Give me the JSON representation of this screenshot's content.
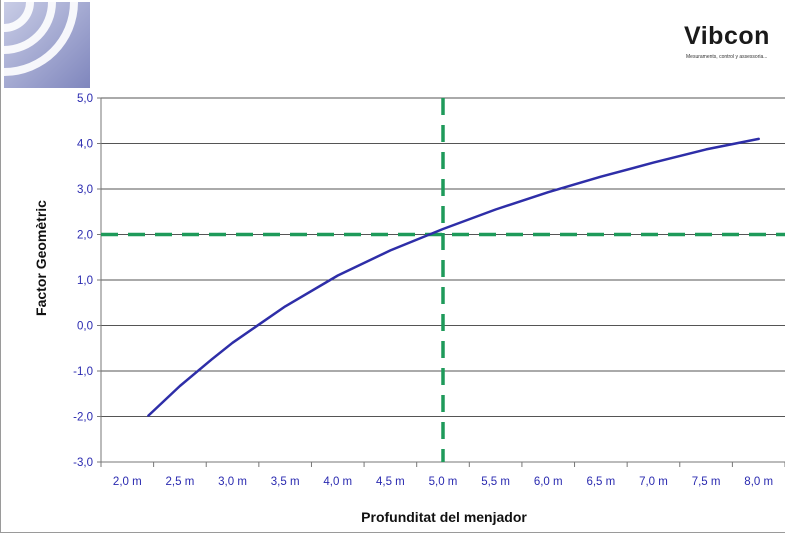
{
  "brand": {
    "name": "Vibcon",
    "tagline": "Mesuraments, control y assessoria..."
  },
  "colors": {
    "curve": "#2e2ea8",
    "reference_lines": "#1e9a5a",
    "grid": "#555555",
    "tick_labels": "#2a2ab0"
  },
  "chart_data": {
    "type": "line",
    "xlabel": "Profunditat del menjador",
    "ylabel": "Factor Geomètric",
    "x_tick_labels": [
      "2,0 m",
      "2,5 m",
      "3,0 m",
      "3,5 m",
      "4,0 m",
      "4,5 m",
      "5,0 m",
      "5,5 m",
      "6,0 m",
      "6,5 m",
      "7,0 m",
      "7,5 m",
      "8,0 m"
    ],
    "x_ticks": [
      2.0,
      2.5,
      3.0,
      3.5,
      4.0,
      4.5,
      5.0,
      5.5,
      6.0,
      6.5,
      7.0,
      7.5,
      8.0
    ],
    "y_tick_labels": [
      "-3,0",
      "-2,0",
      "-1,0",
      "0,0",
      "1,0",
      "2,0",
      "3,0",
      "4,0",
      "5,0"
    ],
    "y_ticks": [
      -3,
      -2,
      -1,
      0,
      1,
      2,
      3,
      4,
      5
    ],
    "xlim": [
      1.75,
      8.25
    ],
    "ylim": [
      -3,
      5
    ],
    "grid": "horizontal",
    "series": [
      {
        "x": [
          2.2,
          2.5,
          2.8,
          3.0,
          3.5,
          4.0,
          4.5,
          5.0,
          5.5,
          6.0,
          6.5,
          7.0,
          7.5,
          8.0
        ],
        "y": [
          -1.98,
          -1.33,
          -0.75,
          -0.38,
          0.42,
          1.1,
          1.65,
          2.12,
          2.55,
          2.93,
          3.27,
          3.58,
          3.87,
          4.1
        ]
      }
    ],
    "reference_lines": {
      "x": 5.0,
      "y": 2.0,
      "style": "dashed"
    }
  }
}
